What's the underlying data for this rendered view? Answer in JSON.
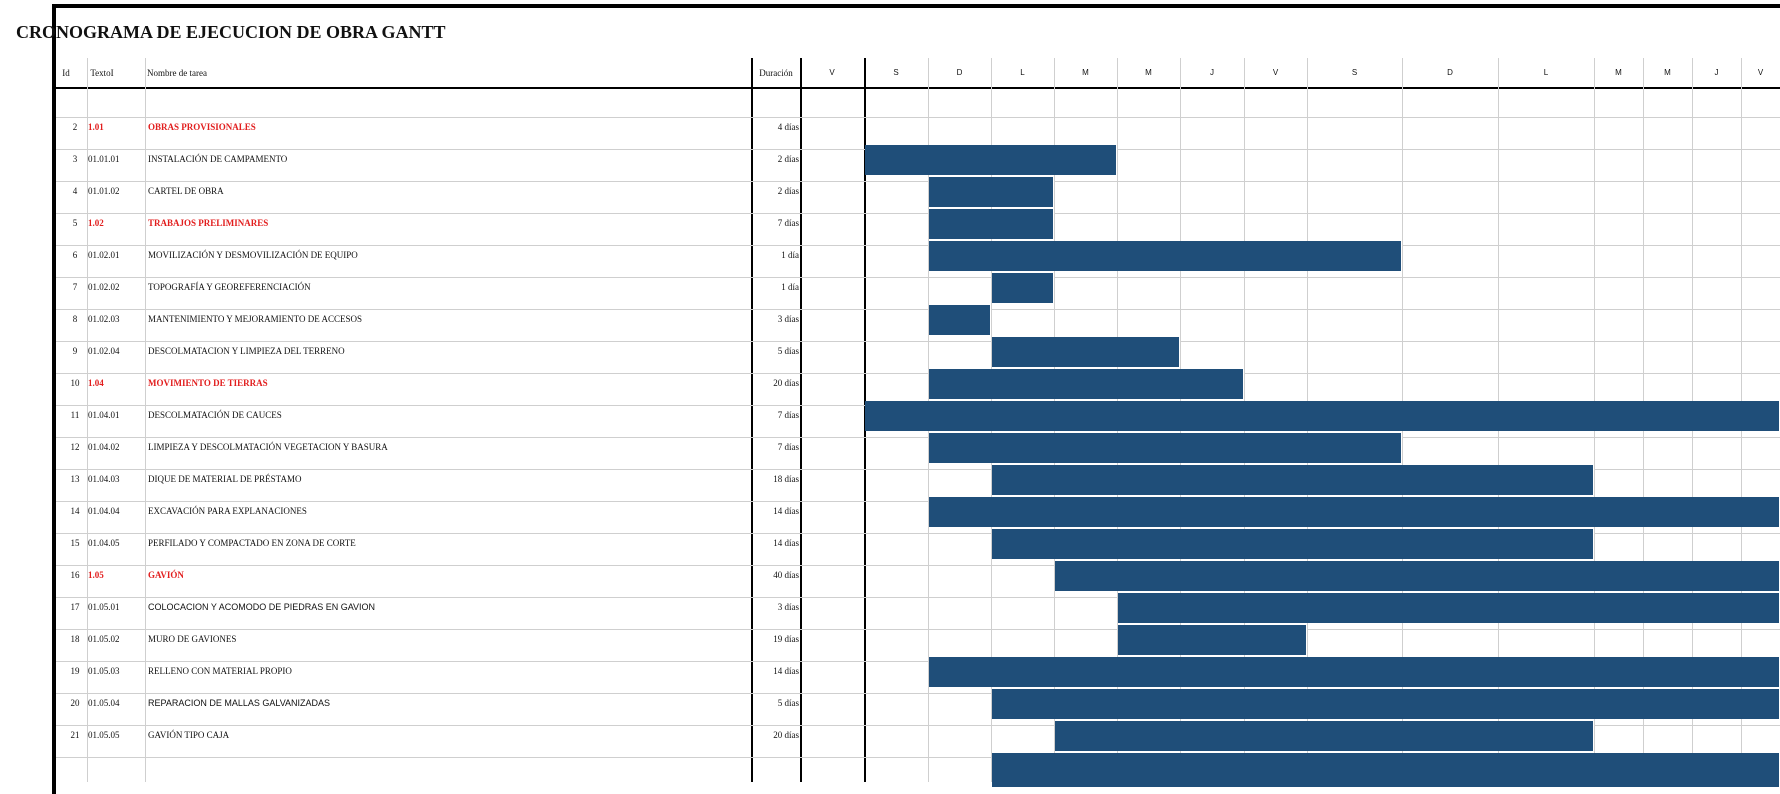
{
  "title": "CRONOGRAMA DE EJECUCION DE OBRA GANTT",
  "colors": {
    "bar": "#1f4e79",
    "summary_text": "#e21e1e"
  },
  "headers": {
    "id": "Id",
    "code": "TextoI",
    "name": "Nombre de tarea",
    "duration": "Duración"
  },
  "days": [
    "V",
    "S",
    "D",
    "L",
    "M",
    "M",
    "J",
    "V",
    "S",
    "D",
    "L",
    "M",
    "M",
    "J",
    "V"
  ],
  "tasks": [
    {
      "id": "2",
      "code": "1.01",
      "name": "OBRAS PROVISIONALES",
      "duration": "4 días",
      "summary": true
    },
    {
      "id": "3",
      "code": "01.01.01",
      "name": "INSTALACIÓN DE CAMPAMENTO",
      "duration": "2 días"
    },
    {
      "id": "4",
      "code": "01.01.02",
      "name": "CARTEL DE OBRA",
      "duration": "2 días"
    },
    {
      "id": "5",
      "code": "1.02",
      "name": "TRABAJOS PRELIMINARES",
      "duration": "7 días",
      "summary": true
    },
    {
      "id": "6",
      "code": "01.02.01",
      "name": "MOVILIZACIÓN Y DESMOVILIZACIÓN DE EQUIPO",
      "duration": "1 día"
    },
    {
      "id": "7",
      "code": "01.02.02",
      "name": "TOPOGRAFÍA Y GEOREFERENCIACIÓN",
      "duration": "1 día"
    },
    {
      "id": "8",
      "code": "01.02.03",
      "name": "MANTENIMIENTO Y MEJORAMIENTO DE ACCESOS",
      "duration": "3 días"
    },
    {
      "id": "9",
      "code": "01.02.04",
      "name": "DESCOLMATACION Y LIMPIEZA DEL TERRENO",
      "duration": "5 días"
    },
    {
      "id": "10",
      "code": "1.04",
      "name": "MOVIMIENTO DE TIERRAS",
      "duration": "20 días",
      "summary": true
    },
    {
      "id": "11",
      "code": "01.04.01",
      "name": "DESCOLMATACIÓN DE CAUCES",
      "duration": "7 días"
    },
    {
      "id": "12",
      "code": "01.04.02",
      "name": "LIMPIEZA Y DESCOLMATACIÓN  VEGETACION Y BASURA",
      "duration": "7 días"
    },
    {
      "id": "13",
      "code": "01.04.03",
      "name": "DIQUE DE MATERIAL DE PRÉSTAMO",
      "duration": "18 días"
    },
    {
      "id": "14",
      "code": "01.04.04",
      "name": "EXCAVACIÓN PARA EXPLANACIONES",
      "duration": "14 días"
    },
    {
      "id": "15",
      "code": "01.04.05",
      "name": "PERFILADO Y COMPACTADO EN ZONA DE CORTE",
      "duration": "14 días"
    },
    {
      "id": "16",
      "code": "1.05",
      "name": "GAVIÓN",
      "duration": "40 días",
      "summary": true
    },
    {
      "id": "17",
      "code": "01.05.01",
      "name": "COLOCACION Y ACOMODO DE PIEDRAS EN GAVION",
      "duration": "3 días",
      "sans": true
    },
    {
      "id": "18",
      "code": "01.05.02",
      "name": "MURO DE GAVIONES",
      "duration": "19 días"
    },
    {
      "id": "19",
      "code": "01.05.03",
      "name": "RELLENO CON MATERIAL PROPIO",
      "duration": "14 días"
    },
    {
      "id": "20",
      "code": "01.05.04",
      "name": "REPARACION DE MALLAS GALVANIZADAS",
      "duration": "5 días",
      "sans": true
    },
    {
      "id": "21",
      "code": "01.05.05",
      "name": "GAVIÓN TIPO CAJA",
      "duration": "20 días"
    }
  ]
}
